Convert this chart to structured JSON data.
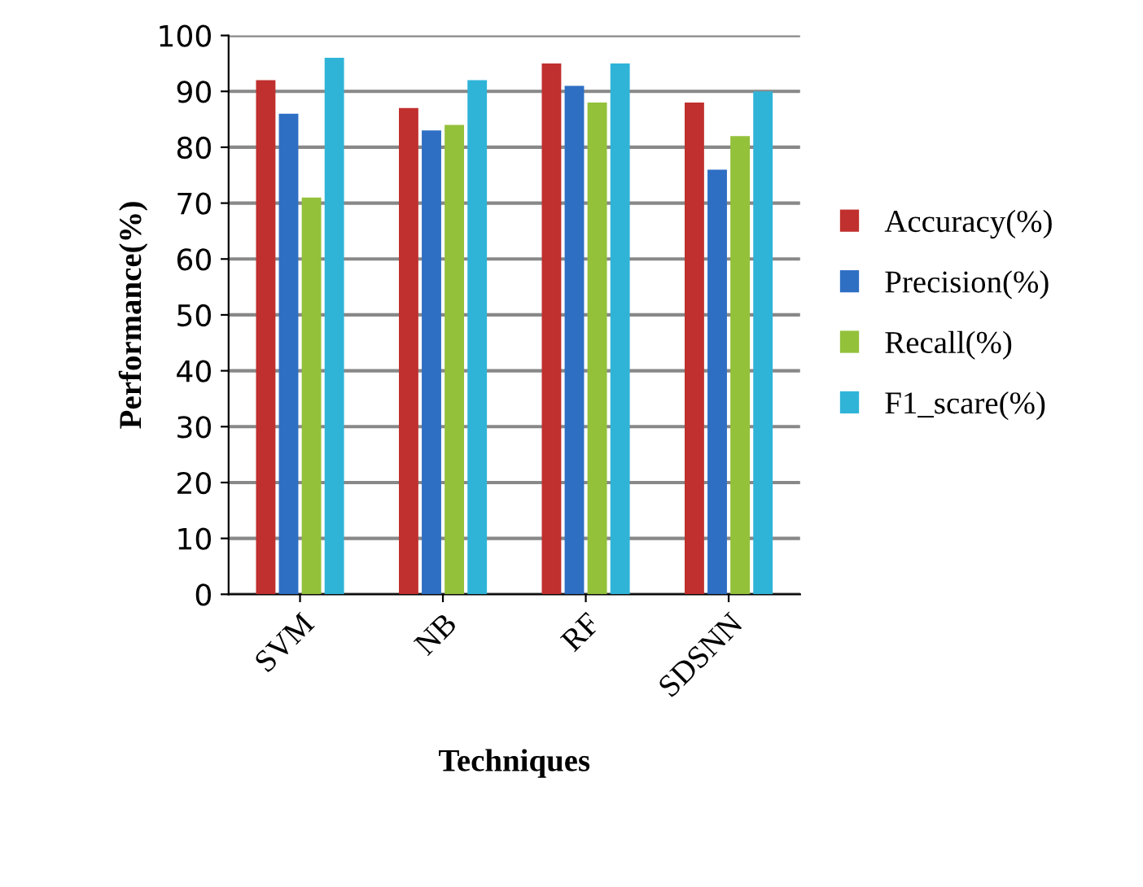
{
  "chart_data": {
    "type": "bar",
    "xlabel": "Techniques",
    "ylabel": "Performance(%)",
    "categories": [
      "SVM",
      "NB",
      "RF",
      "SDSNN"
    ],
    "series": [
      {
        "name": "Accuracy(%)",
        "color": "#c0302e",
        "values": [
          92,
          87,
          95,
          88
        ]
      },
      {
        "name": "Precision(%)",
        "color": "#2e6fc4",
        "values": [
          86,
          83,
          91,
          76
        ]
      },
      {
        "name": "Recall(%)",
        "color": "#93c13a",
        "values": [
          71,
          84,
          88,
          82
        ]
      },
      {
        "name": "F1_scare(%)",
        "color": "#2fb4d8",
        "values": [
          96,
          92,
          95,
          90
        ]
      }
    ],
    "ylim": [
      0,
      100
    ],
    "yticks": [
      0,
      10,
      20,
      30,
      40,
      50,
      60,
      70,
      80,
      90,
      100
    ],
    "grid": "y",
    "legend": "right"
  }
}
